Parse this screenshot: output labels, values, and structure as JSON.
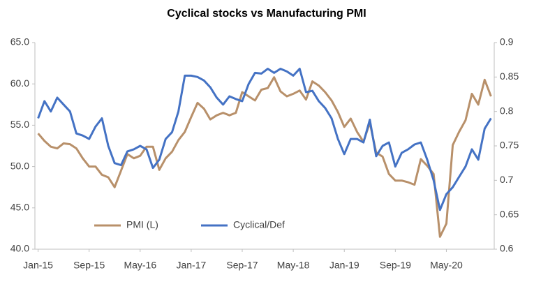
{
  "chart_data": {
    "type": "line",
    "title": "Cyclical stocks vs Manufacturing PMI",
    "categories": [
      "Jan-15",
      null,
      null,
      null,
      null,
      null,
      null,
      null,
      "Sep-15",
      null,
      null,
      null,
      null,
      null,
      null,
      null,
      "May-16",
      null,
      null,
      null,
      null,
      null,
      null,
      null,
      "Jan-17",
      null,
      null,
      null,
      null,
      null,
      null,
      null,
      "Sep-17",
      null,
      null,
      null,
      null,
      null,
      null,
      null,
      "May-18",
      null,
      null,
      null,
      null,
      null,
      null,
      null,
      "Jan-19",
      null,
      null,
      null,
      null,
      null,
      null,
      null,
      "Sep-19",
      null,
      null,
      null,
      null,
      null,
      null,
      null,
      "May-20",
      null,
      null,
      null,
      null,
      null,
      null,
      null
    ],
    "series": [
      {
        "name": "PMI (L)",
        "color": "#b8906a",
        "axis": "y",
        "values": [
          54.0,
          53.1,
          52.4,
          52.2,
          52.8,
          52.7,
          52.2,
          51.0,
          50.0,
          50.0,
          49.0,
          48.7,
          47.5,
          49.5,
          51.5,
          51.0,
          51.3,
          52.4,
          52.4,
          49.6,
          51.0,
          51.8,
          53.2,
          54.2,
          56.0,
          57.7,
          57.0,
          55.7,
          56.2,
          56.5,
          56.2,
          56.5,
          59.0,
          58.5,
          58.0,
          59.3,
          59.5,
          60.8,
          59.1,
          58.5,
          58.8,
          59.2,
          58.1,
          60.3,
          59.8,
          59.0,
          58.0,
          56.6,
          54.8,
          55.8,
          54.2,
          53.0,
          55.3,
          51.7,
          51.2,
          49.1,
          48.3,
          48.3,
          48.1,
          47.8,
          50.9,
          50.1,
          49.1,
          41.5,
          43.1,
          52.6,
          54.2,
          55.6,
          58.8,
          57.5,
          60.5,
          58.5
        ]
      },
      {
        "name": "Cyclical/Def",
        "color": "#4472c4",
        "axis": "y2",
        "values": [
          0.79,
          0.815,
          0.8,
          0.82,
          0.81,
          0.8,
          0.768,
          0.765,
          0.76,
          0.778,
          0.79,
          0.75,
          0.725,
          0.722,
          0.742,
          0.745,
          0.75,
          0.745,
          0.718,
          0.73,
          0.76,
          0.77,
          0.8,
          0.852,
          0.852,
          0.85,
          0.845,
          0.835,
          0.82,
          0.81,
          0.822,
          0.818,
          0.815,
          0.84,
          0.856,
          0.855,
          0.862,
          0.856,
          0.862,
          0.858,
          0.852,
          0.862,
          0.828,
          0.83,
          0.815,
          0.805,
          0.79,
          0.76,
          0.738,
          0.76,
          0.76,
          0.755,
          0.788,
          0.735,
          0.75,
          0.755,
          0.72,
          0.74,
          0.745,
          0.752,
          0.755,
          0.73,
          0.7,
          0.657,
          0.68,
          0.69,
          0.705,
          0.72,
          0.745,
          0.73,
          0.775,
          0.79
        ]
      }
    ],
    "ylim": [
      40,
      65
    ],
    "yticks": [
      {
        "value": 40,
        "label": "40.0"
      },
      {
        "value": 45,
        "label": "45.0"
      },
      {
        "value": 50,
        "label": "50.0"
      },
      {
        "value": 55,
        "label": "55.0"
      },
      {
        "value": 60,
        "label": "60.0"
      },
      {
        "value": 65,
        "label": "65.0"
      }
    ],
    "y2lim": [
      0.6,
      0.9
    ],
    "y2ticks": [
      0.6,
      0.65,
      0.7,
      0.75,
      0.8,
      0.85,
      0.9
    ],
    "grid": false,
    "legend": "bottom-left"
  }
}
